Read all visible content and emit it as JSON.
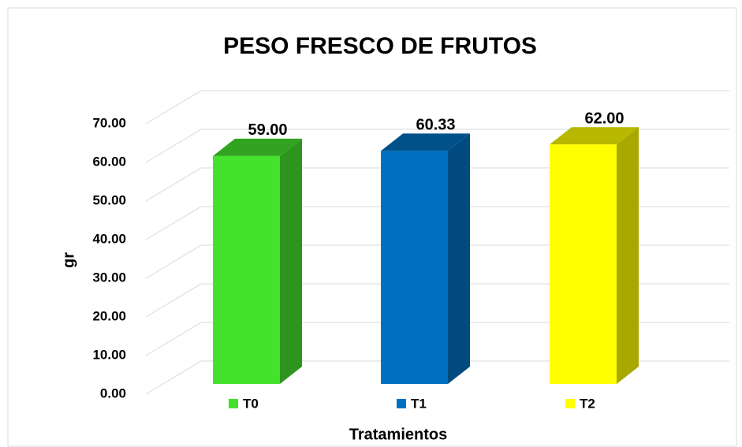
{
  "chart_data": {
    "type": "bar3d",
    "title": "PESO FRESCO DE FRUTOS",
    "ylabel": "gr",
    "xlabel": "Tratamientos",
    "categories": [
      "T0",
      "T1",
      "T2"
    ],
    "values": [
      59,
      60.33,
      62
    ],
    "value_labels": [
      "59.00",
      "60.33",
      "62.00"
    ],
    "colors": [
      "#44e22c",
      "#0070c0",
      "#ffff00"
    ],
    "ylim": [
      0,
      70
    ],
    "yticks": [
      {
        "value": 0,
        "label": "0.00"
      },
      {
        "value": 10,
        "label": "10.00"
      },
      {
        "value": 20,
        "label": "20.00"
      },
      {
        "value": 30,
        "label": "30.00"
      },
      {
        "value": 40,
        "label": "40.00"
      },
      {
        "value": 50,
        "label": "50.00"
      },
      {
        "value": 60,
        "label": "60.00"
      },
      {
        "value": 70,
        "label": "70.00"
      }
    ],
    "grid": true,
    "legend": "bottom"
  }
}
